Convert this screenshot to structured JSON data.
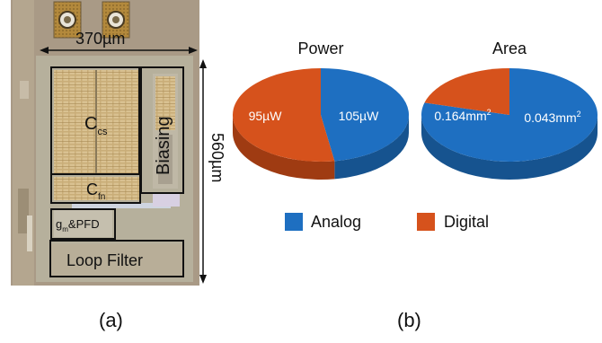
{
  "figure": {
    "panel_a": {
      "label": "(a)",
      "width_dim": "370µm",
      "height_dim": "560µm",
      "blocks": {
        "ccs": {
          "main": "C",
          "sub": "cs"
        },
        "biasing": "Biasing",
        "cfn": {
          "main": "C",
          "sub": "fn"
        },
        "gm_pfd": {
          "main": "g",
          "sub": "m",
          "rest": "&PFD"
        },
        "loop_filter": "Loop Filter"
      }
    },
    "panel_b": {
      "label": "(b)",
      "legend": {
        "analog": "Analog",
        "digital": "Digital"
      }
    }
  },
  "colors": {
    "analog": "#1e6fc1",
    "digital": "#d6521c",
    "analog_side": "#16538f",
    "digital_side": "#9f3b12"
  },
  "chart_data": [
    {
      "type": "pie",
      "title": "Power",
      "categories": [
        "Analog",
        "Digital"
      ],
      "values": [
        95,
        105
      ],
      "value_labels": [
        "95µW",
        "105µW"
      ],
      "unit": "µW",
      "legend": "bottom"
    },
    {
      "type": "pie",
      "title": "Area",
      "categories": [
        "Analog",
        "Digital"
      ],
      "values": [
        0.164,
        0.043
      ],
      "value_labels": [
        {
          "main": "0.164mm",
          "sup": "2"
        },
        {
          "main": "0.043mm",
          "sup": "2"
        }
      ],
      "unit": "mm2",
      "legend": "bottom"
    }
  ]
}
